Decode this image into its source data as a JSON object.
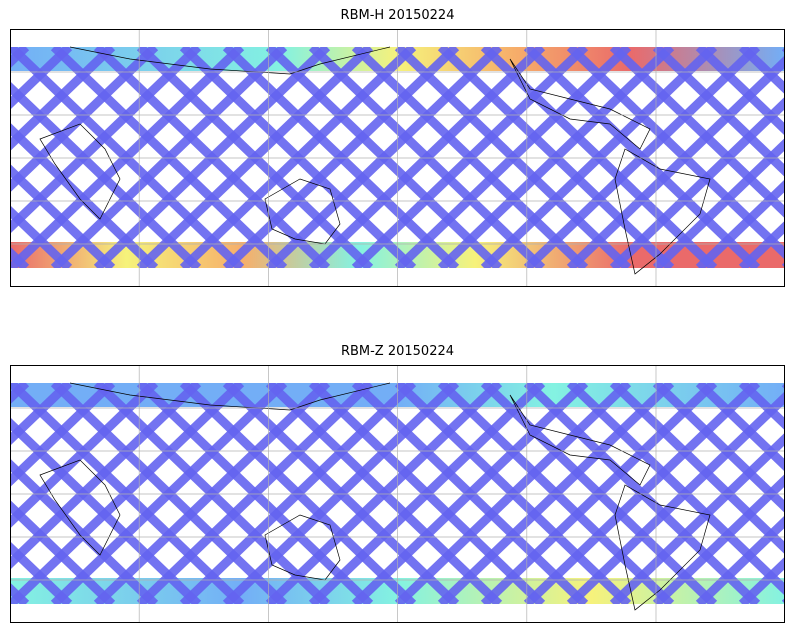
{
  "panels": [
    {
      "title": "RBM-H 20150224",
      "top_band": "hot",
      "bottom_band": "hot"
    },
    {
      "title": "RBM-Z 20150224",
      "top_band": "mild",
      "bottom_band": "mild"
    }
  ],
  "colors": {
    "track": "#6464f0",
    "track_light": "#5aa0f5",
    "cyan": "#6ef0dc",
    "yellow": "#f5f064",
    "orange": "#f5a050",
    "red": "#e65050",
    "grid": "#b0b0b0",
    "coast": "#000000"
  }
}
